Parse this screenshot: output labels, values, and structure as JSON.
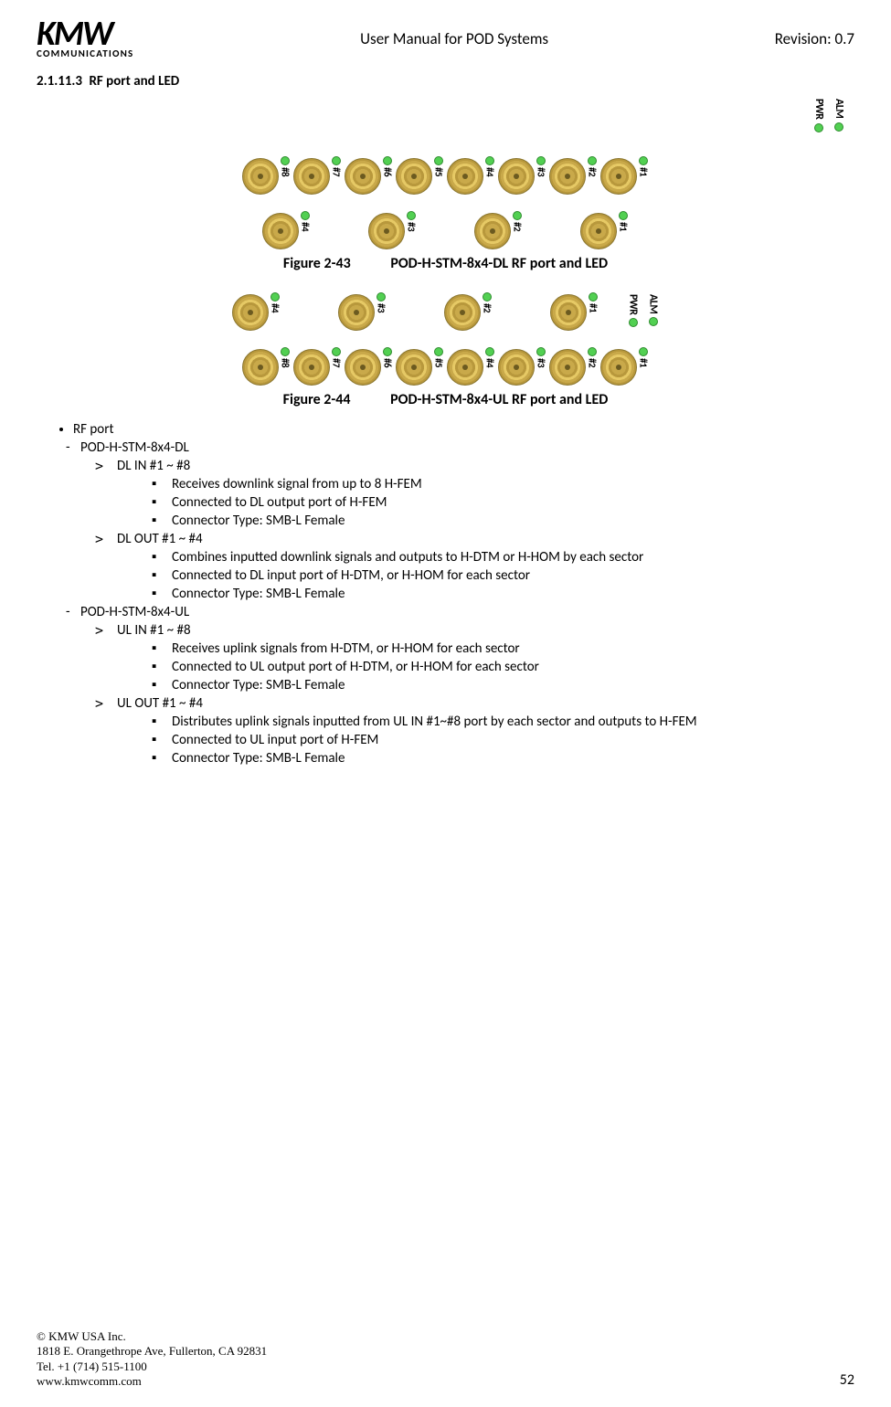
{
  "header": {
    "logo_main": "KMW",
    "logo_sub": "COMMUNICATIONS",
    "title": "User Manual for POD Systems",
    "revision": "Revision: 0.7"
  },
  "section": {
    "number": "2.1.11.3",
    "title": "RF port and LED"
  },
  "status": {
    "pwr": "PWR",
    "alm": "ALM"
  },
  "led_color": "#52d052",
  "port_color": "#c9a94a",
  "ports8": [
    "#1",
    "#2",
    "#3",
    "#4",
    "#5",
    "#6",
    "#7",
    "#8"
  ],
  "ports4": [
    "#1",
    "#2",
    "#3",
    "#4"
  ],
  "fig43": {
    "num": "Figure 2-43",
    "caption": "POD-H-STM-8x4-DL RF port and LED"
  },
  "fig44": {
    "num": "Figure 2-44",
    "caption": "POD-H-STM-8x4-UL RF port and LED"
  },
  "content": {
    "rfport": "RF port",
    "dl_model": "POD-H-STM-8x4-DL",
    "dl_in": "DL IN #1 ~ #8",
    "dl_in_1": "Receives downlink signal from up to 8 H-FEM",
    "dl_in_2": "Connected to DL output port of H-FEM",
    "dl_in_3": "Connector Type: SMB-L Female",
    "dl_out": "DL OUT #1 ~ #4",
    "dl_out_1": "Combines inputted downlink signals and outputs to H-DTM or H-HOM by each sector",
    "dl_out_2": "Connected to DL input port of H-DTM, or H-HOM for each sector",
    "dl_out_3": "Connector Type: SMB-L Female",
    "ul_model": "POD-H-STM-8x4-UL",
    "ul_in": "UL IN #1 ~ #8",
    "ul_in_1": "Receives uplink signals from H-DTM, or H-HOM for each sector",
    "ul_in_2": "Connected to UL output port of H-DTM, or H-HOM for each sector",
    "ul_in_3": "Connector Type: SMB-L Female",
    "ul_out": "UL OUT #1 ~ #4",
    "ul_out_1": "Distributes uplink signals inputted from UL IN #1~#8 port by each sector and outputs to H-FEM",
    "ul_out_2": "Connected to UL input port of H-FEM",
    "ul_out_3": "Connector Type: SMB-L Female"
  },
  "footer": {
    "l1": "© KMW USA Inc.",
    "l2": "1818 E. Orangethrope Ave, Fullerton, CA 92831",
    "l3": "Tel. +1 (714) 515-1100",
    "l4": "www.kmwcomm.com",
    "page": "52"
  }
}
